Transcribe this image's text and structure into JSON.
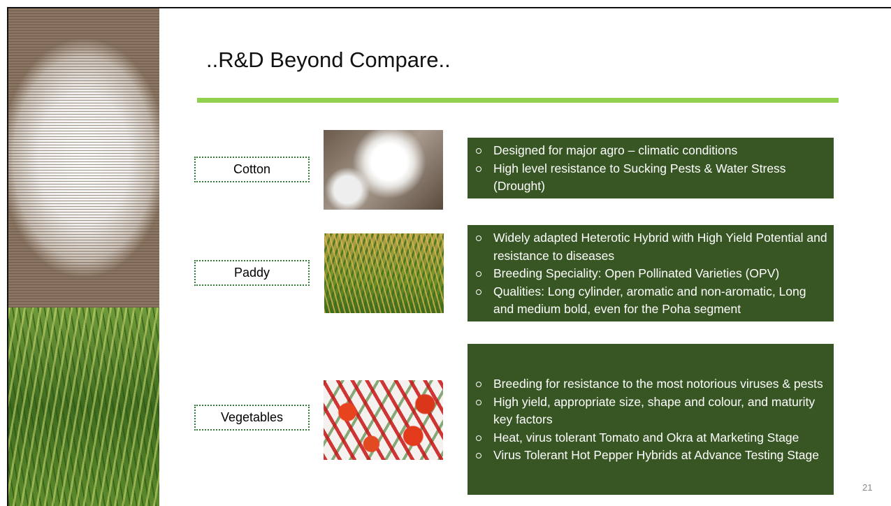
{
  "title": "..R&D Beyond Compare..",
  "rows": [
    {
      "label": "Cotton",
      "bullets": [
        "Designed for major agro – climatic conditions",
        "High level resistance to Sucking Pests & Water Stress (Drought)"
      ]
    },
    {
      "label": "Paddy",
      "bullets": [
        "Widely adapted Heterotic Hybrid with High Yield Potential and resistance to diseases",
        "Breeding Speciality: Open Pollinated Varieties (OPV)",
        "Qualities: Long cylinder, aromatic and non-aromatic, Long and medium bold, even for the Poha segment"
      ]
    },
    {
      "label": "Vegetables",
      "bullets": [
        "Breeding for resistance to the most notorious viruses & pests",
        "High yield, appropriate size, shape and  colour, and maturity key factors",
        "Heat, virus tolerant Tomato and Okra at Marketing Stage",
        "Virus Tolerant Hot Pepper Hybrids at Advance Testing Stage"
      ]
    }
  ],
  "page_number": "21"
}
